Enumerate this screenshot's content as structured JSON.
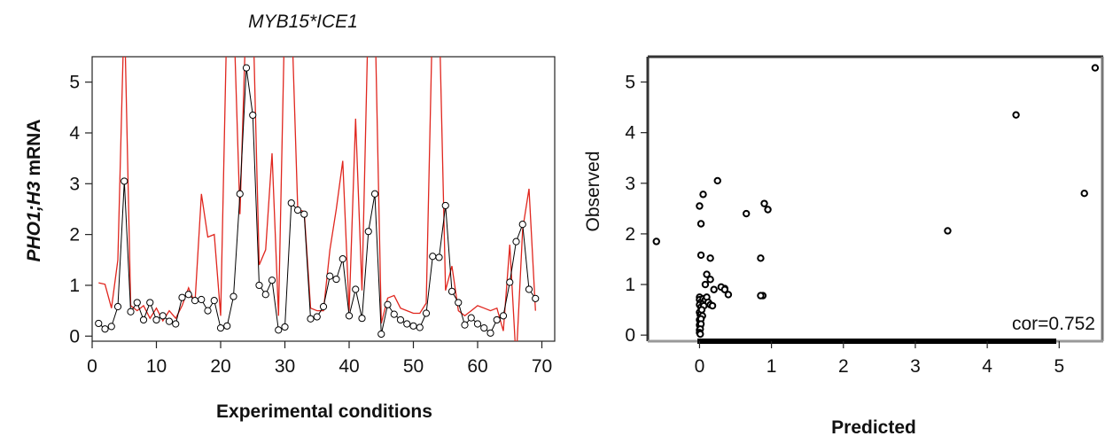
{
  "chart_data": [
    {
      "type": "line",
      "title": "MYB15*ICE1",
      "xlabel": "Experimental conditions",
      "ylabel_italic": "PHO1;H3",
      "ylabel_rest": " mRNA",
      "xlim": [
        0,
        72
      ],
      "ylim": [
        -0.1,
        5.5
      ],
      "xticks": [
        0,
        10,
        20,
        30,
        40,
        50,
        60,
        70
      ],
      "yticks": [
        0,
        1,
        2,
        3,
        4,
        5
      ],
      "grid": false,
      "series": [
        {
          "role": "observed",
          "color": "#000000",
          "marker": "open-circle",
          "x": [
            1,
            2,
            3,
            4,
            5,
            6,
            7,
            8,
            9,
            10,
            11,
            12,
            13,
            14,
            15,
            16,
            17,
            18,
            19,
            20,
            21,
            22,
            23,
            24,
            25,
            26,
            27,
            28,
            29,
            30,
            31,
            32,
            33,
            34,
            35,
            36,
            37,
            38,
            39,
            40,
            41,
            42,
            43,
            44,
            45,
            46,
            47,
            48,
            49,
            50,
            51,
            52,
            53,
            54,
            55,
            56,
            57,
            58,
            59,
            60,
            61,
            62,
            63,
            64,
            65,
            66,
            67,
            68,
            69
          ],
          "values": [
            0.25,
            0.14,
            0.19,
            0.58,
            3.05,
            0.48,
            0.66,
            0.32,
            0.66,
            0.32,
            0.4,
            0.29,
            0.24,
            0.76,
            0.82,
            0.7,
            0.72,
            0.5,
            0.7,
            0.16,
            0.2,
            0.78,
            2.8,
            5.28,
            4.35,
            1.0,
            0.82,
            1.1,
            0.12,
            0.18,
            2.62,
            2.48,
            2.4,
            0.34,
            0.38,
            0.58,
            1.18,
            1.12,
            1.52,
            0.4,
            0.92,
            0.35,
            2.06,
            2.8,
            0.04,
            0.62,
            0.43,
            0.32,
            0.24,
            0.2,
            0.17,
            0.45,
            1.57,
            1.55,
            2.57,
            0.88,
            0.66,
            0.22,
            0.36,
            0.24,
            0.16,
            0.06,
            0.32,
            0.4,
            1.06,
            1.86,
            2.2,
            0.92,
            0.74
          ]
        },
        {
          "role": "predicted",
          "color": "#e0261e",
          "marker": "none",
          "x": [
            1,
            2,
            3,
            4,
            5,
            6,
            7,
            8,
            9,
            10,
            11,
            12,
            13,
            14,
            15,
            16,
            17,
            18,
            19,
            20,
            21,
            22,
            23,
            24,
            25,
            26,
            27,
            28,
            29,
            30,
            31,
            32,
            33,
            34,
            35,
            36,
            37,
            38,
            39,
            40,
            41,
            42,
            43,
            44,
            45,
            46,
            47,
            48,
            49,
            50,
            51,
            52,
            53,
            54,
            55,
            56,
            57,
            58,
            59,
            60,
            61,
            62,
            63,
            64,
            65,
            66,
            67,
            68,
            69
          ],
          "values": [
            1.05,
            1.02,
            0.55,
            1.5,
            6.5,
            0.6,
            0.5,
            0.6,
            0.35,
            0.55,
            0.3,
            0.5,
            0.35,
            0.6,
            0.95,
            0.65,
            2.8,
            1.95,
            2.0,
            0.4,
            6.5,
            6.5,
            2.4,
            6.5,
            6.5,
            1.4,
            1.7,
            3.6,
            0.4,
            6.5,
            6.5,
            2.5,
            2.45,
            0.55,
            0.5,
            0.5,
            1.7,
            2.5,
            3.45,
            0.5,
            4.28,
            0.9,
            6.5,
            6.5,
            0.25,
            0.75,
            0.8,
            0.55,
            0.5,
            0.45,
            0.45,
            0.65,
            6.5,
            6.5,
            0.9,
            1.38,
            0.5,
            0.4,
            0.5,
            0.6,
            0.55,
            0.5,
            0.55,
            0.1,
            1.8,
            -0.5,
            2.1,
            2.9,
            0.5
          ]
        }
      ]
    },
    {
      "type": "scatter",
      "title": "",
      "xlabel": "Predicted",
      "ylabel": "Observed",
      "xlim": [
        -0.72,
        5.6
      ],
      "ylim": [
        -0.12,
        5.5
      ],
      "xticks": [
        0,
        1,
        2,
        3,
        4,
        5
      ],
      "yticks": [
        0,
        1,
        2,
        3,
        4,
        5
      ],
      "grid": false,
      "annotation": "cor=0.752",
      "series": [
        {
          "marker": "open-circle",
          "color": "#000000",
          "x": [
            -0.6,
            0.0,
            0.02,
            0.05,
            0.02,
            0.15,
            0.25,
            0.65,
            0.9,
            0.95,
            0.88,
            0.85,
            0.35,
            0.0,
            0.0,
            0.02,
            0.05,
            0.08,
            0.1,
            0.15,
            0.2,
            0.3,
            0.35,
            0.4,
            0.0,
            0.02,
            0.03,
            0.05,
            0.06,
            0.08,
            0.1,
            0.12,
            0.15,
            0.18,
            0.0,
            0.01,
            0.02,
            0.03,
            0.04,
            0.0,
            0.01,
            0.02,
            0.0,
            0.01,
            0.02,
            0.0,
            0.01,
            0.0,
            0.01,
            0.85,
            3.45,
            4.4,
            5.35,
            5.5
          ],
          "y": [
            1.85,
            2.55,
            1.58,
            2.78,
            2.2,
            1.52,
            3.05,
            2.4,
            2.6,
            2.48,
            0.78,
            1.52,
            0.92,
            0.75,
            0.7,
            0.65,
            0.72,
            1.0,
            1.2,
            1.1,
            0.9,
            0.95,
            0.9,
            0.8,
            0.6,
            0.55,
            0.5,
            0.62,
            0.58,
            0.7,
            0.75,
            0.65,
            0.6,
            0.58,
            0.45,
            0.4,
            0.42,
            0.5,
            0.38,
            0.3,
            0.28,
            0.32,
            0.2,
            0.18,
            0.22,
            0.1,
            0.12,
            0.05,
            0.02,
            0.78,
            2.06,
            4.35,
            2.8,
            5.28
          ]
        }
      ]
    }
  ]
}
